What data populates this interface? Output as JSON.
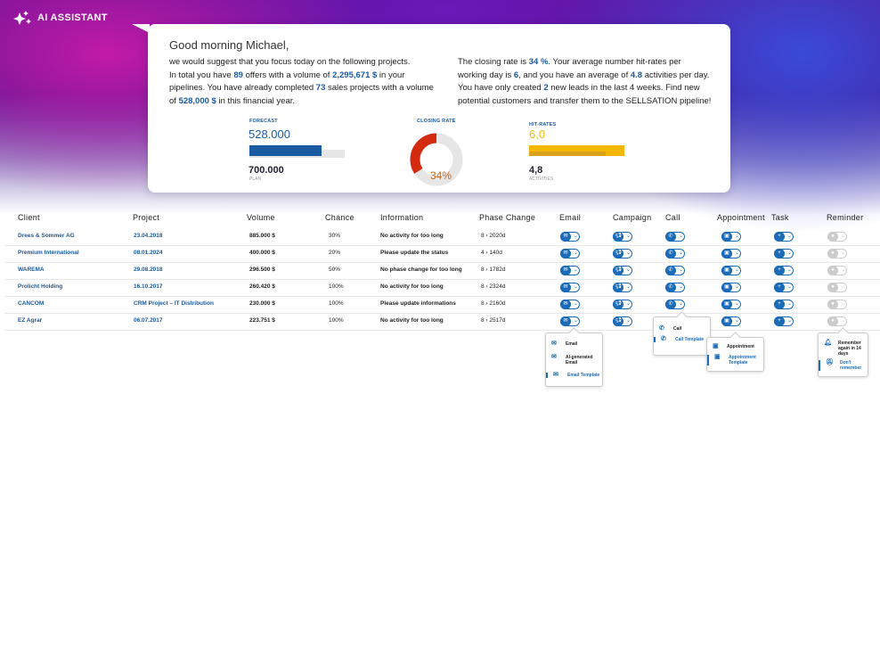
{
  "app": {
    "title": "AI ASSISTANT",
    "icon": "sparkles-icon"
  },
  "greeting": {
    "title": "Good morning Michael,",
    "left": {
      "l1": "we would suggest that you focus today on the following projects.",
      "l2a": "In total you have ",
      "offers": "89",
      "l2b": " offers with a volume of ",
      "volume": "2,295,671 $",
      "l2c": " in your",
      "l3a": "pipelines. You have already completed ",
      "completed": "73",
      "l3b": " sales projects with a volume",
      "l4a": "of ",
      "completed_volume": "528,000 $",
      "l4b": " in this financial year."
    },
    "right": {
      "l1a": "The closing rate is ",
      "rate": "34 %",
      "l1b": ". Your average number hit-rates per",
      "l2a": "working day is ",
      "hits": "6",
      "l2b": ", and you have an average of ",
      "activities": "4.8",
      "l2c": " activities per day.",
      "l3a": "You have only created ",
      "leads": "2",
      "l3b": " new leads in the last 4 weeks. Find new",
      "l4": "potential customers and transfer them to the SELLSATION pipeline!"
    }
  },
  "kpis": {
    "forecast": {
      "label": "FORECAST",
      "value": "528.000",
      "plan": "700.000",
      "plan_label": "PLAN",
      "fill": 0.754,
      "color": "#1a5aa0"
    },
    "closing": {
      "label": "CLOSING RATE",
      "value": "34%",
      "percent": 34,
      "color": "#d42a10"
    },
    "hits": {
      "label": "HIT-RATES",
      "value": "6,0",
      "activities": "4,8",
      "activities_label": "ACTIVITIES",
      "color": "#f5b800"
    }
  },
  "table": {
    "headers": [
      "Client",
      "Project",
      "Volume",
      "Chance",
      "Information",
      "Phase Change",
      "Email",
      "Campaign",
      "Call",
      "Appointment",
      "Task",
      "Reminder"
    ],
    "rows": [
      [
        "Drees & Sommer AG",
        "23.04.2018",
        "885.000 $",
        "30%",
        "No activity for too long",
        "8 › 2020d"
      ],
      [
        "Premium International",
        "08.01.2024",
        "400.000 $",
        "20%",
        "Please update the status",
        "4 › 140d"
      ],
      [
        "WAREMA",
        "29.08.2018",
        "296.500 $",
        "50%",
        "No phase change for too long",
        "8 › 1782d"
      ],
      [
        "Prolicht Holding",
        "16.10.2017",
        "260.420 $",
        "100%",
        "No activity for too long",
        "8 › 2324d"
      ],
      [
        "CANCOM",
        "CRM Project – IT Distribution",
        "230.000 $",
        "100%",
        "Please update informations",
        "8 › 2160d"
      ],
      [
        "EZ Agrar",
        "06.07.2017",
        "223.751 $",
        "100%",
        "No activity for too long",
        "8 › 2517d"
      ]
    ]
  },
  "menus": {
    "email": [
      "Email",
      "AI-generated Email",
      "Email Template"
    ],
    "call": [
      "Call",
      "Call Template"
    ],
    "appointment": [
      "Appointment",
      "Appointment Template"
    ],
    "reminder": [
      "Remember again in 14 days",
      "Don't remember"
    ]
  },
  "colors": {
    "accent": "#1b6bb8",
    "inactive": "#cccccc"
  }
}
